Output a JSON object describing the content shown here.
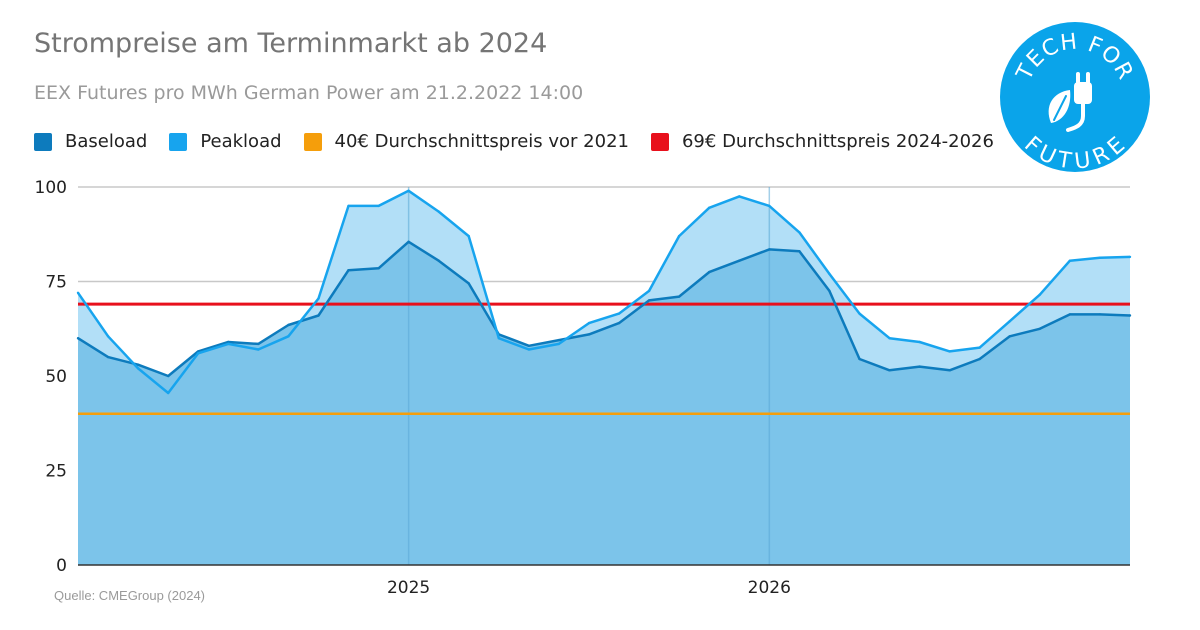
{
  "header": {
    "title": "Strompreise am Terminmarkt ab 2024",
    "subtitle": "EEX Futures pro MWh German Power am 21.2.2022 14:00"
  },
  "logo": {
    "text_top": "TECH FOR",
    "text_bottom": "FUTURE",
    "icon": "leaf-plug-icon",
    "color": "#0aa4ea"
  },
  "source": "Quelle: CMEGroup (2024)",
  "chart_data": {
    "type": "area",
    "title": "Strompreise am Terminmarkt ab 2024",
    "subtitle": "EEX Futures pro MWh German Power am 21.2.2022 14:00",
    "xlabel": "",
    "ylabel": "",
    "x_ticks": [
      {
        "label": "2025",
        "index": 11
      },
      {
        "label": "2026",
        "index": 23
      }
    ],
    "y_ticks": [
      0,
      25,
      50,
      75,
      100
    ],
    "ylim": [
      0,
      100
    ],
    "grid": true,
    "legend_position": "top",
    "x": [
      "2024-01",
      "2024-02",
      "2024-03",
      "2024-04",
      "2024-05",
      "2024-06",
      "2024-07",
      "2024-08",
      "2024-09",
      "2024-10",
      "2024-11",
      "2024-12",
      "2025-01",
      "2025-02",
      "2025-03",
      "2025-04",
      "2025-05",
      "2025-06",
      "2025-07",
      "2025-08",
      "2025-09",
      "2025-10",
      "2025-11",
      "2025-12",
      "2026-01",
      "2026-02",
      "2026-03",
      "2026-04",
      "2026-05",
      "2026-06",
      "2026-07",
      "2026-08",
      "2026-09",
      "2026-10",
      "2026-11",
      "2026-12"
    ],
    "series": [
      {
        "name": "Baseload",
        "color": "#0d7bbd",
        "fill": "#7cc4ea",
        "values": [
          60,
          55,
          53,
          50,
          56.5,
          59,
          58.5,
          63.5,
          66,
          78,
          78.5,
          85.5,
          80.5,
          74.5,
          61,
          58,
          59.5,
          61,
          64,
          70,
          71,
          77.5,
          80.5,
          83.5,
          83,
          72.5,
          54.5,
          51.5,
          52.5,
          51.5,
          54.5,
          60.5,
          62.5,
          66.3,
          66.3,
          66
        ]
      },
      {
        "name": "Peakload",
        "color": "#17a4ee",
        "fill": "#b2dff7",
        "values": [
          72,
          60.5,
          52,
          45.5,
          56,
          58.5,
          57,
          60.5,
          70.5,
          95,
          95,
          99,
          93.5,
          87,
          60,
          57,
          58.5,
          64,
          66.5,
          72.5,
          87,
          94.5,
          97.5,
          95,
          88,
          77,
          66.5,
          60,
          59,
          56.5,
          57.5,
          64.5,
          71.5,
          80.5,
          81.3,
          81.5
        ]
      }
    ],
    "reference_lines": [
      {
        "name": "40€ Durchschnittspreis vor 2021",
        "value": 40,
        "color": "#f59e0b"
      },
      {
        "name": "69€ Durchschnittspreis 2024-2026",
        "value": 69,
        "color": "#e8101c"
      }
    ]
  }
}
